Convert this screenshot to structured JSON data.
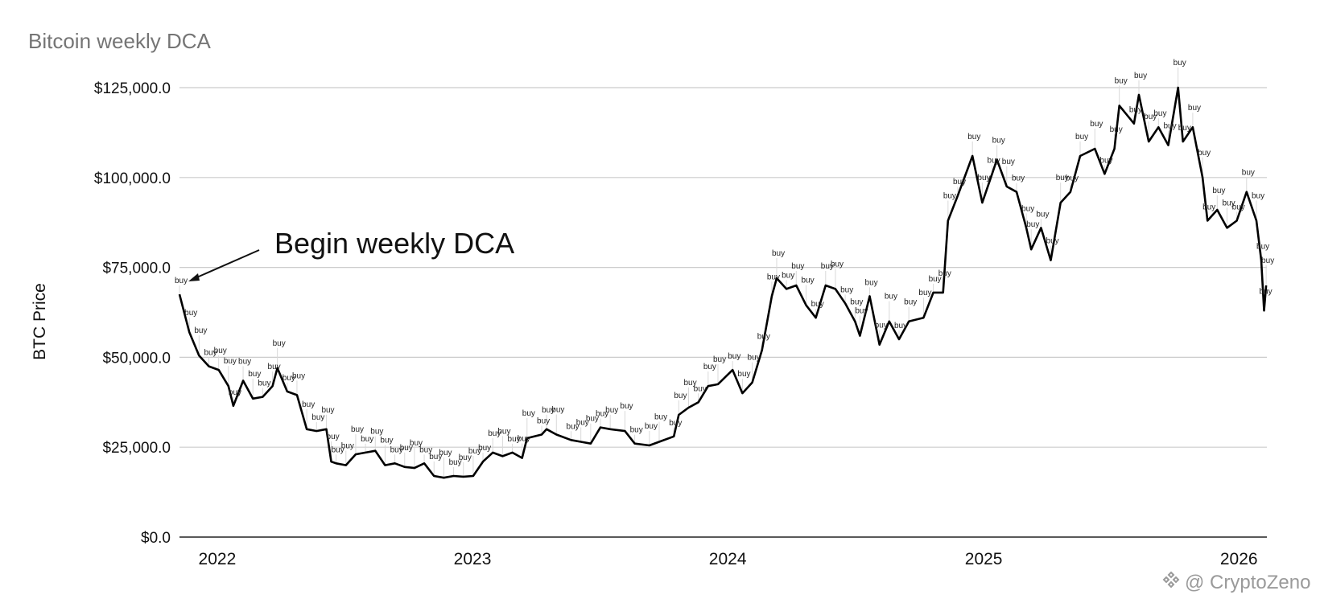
{
  "chart_data": {
    "type": "line",
    "title": "Bitcoin weekly DCA",
    "xlabel": "",
    "ylabel": "BTC Price",
    "ylim": [
      0,
      125000
    ],
    "yticks": [
      "$0.0",
      "$25,000.0",
      "$50,000.0",
      "$75,000.0",
      "$100,000.0",
      "$125,000.0"
    ],
    "xticks": [
      "2022",
      "2023",
      "2024",
      "2025",
      "2026"
    ],
    "grid": true,
    "legend": "none",
    "annotation": {
      "text": "Begin weekly DCA",
      "x": "2021-11-08",
      "y": 68000
    },
    "marker_label": "buy",
    "series": [
      {
        "values": [
          [
            "2021-11-08",
            67500
          ],
          [
            "2021-11-22",
            57000
          ],
          [
            "2021-12-06",
            50500
          ],
          [
            "2021-12-20",
            47500
          ],
          [
            "2022-01-03",
            46500
          ],
          [
            "2022-01-17",
            42000
          ],
          [
            "2022-01-24",
            36500
          ],
          [
            "2022-02-07",
            43500
          ],
          [
            "2022-02-21",
            38500
          ],
          [
            "2022-03-07",
            39000
          ],
          [
            "2022-03-21",
            42000
          ],
          [
            "2022-03-28",
            47000
          ],
          [
            "2022-04-11",
            40500
          ],
          [
            "2022-04-25",
            39500
          ],
          [
            "2022-05-09",
            30000
          ],
          [
            "2022-05-23",
            29500
          ],
          [
            "2022-06-06",
            30000
          ],
          [
            "2022-06-13",
            21000
          ],
          [
            "2022-06-20",
            20500
          ],
          [
            "2022-07-04",
            20000
          ],
          [
            "2022-07-18",
            23000
          ],
          [
            "2022-08-01",
            23500
          ],
          [
            "2022-08-15",
            24000
          ],
          [
            "2022-08-29",
            20000
          ],
          [
            "2022-09-12",
            20500
          ],
          [
            "2022-09-26",
            19500
          ],
          [
            "2022-10-10",
            19200
          ],
          [
            "2022-10-24",
            20500
          ],
          [
            "2022-11-07",
            17000
          ],
          [
            "2022-11-21",
            16500
          ],
          [
            "2022-12-05",
            17000
          ],
          [
            "2022-12-19",
            16800
          ],
          [
            "2023-01-02",
            17000
          ],
          [
            "2023-01-16",
            21000
          ],
          [
            "2023-01-30",
            23500
          ],
          [
            "2023-02-13",
            22500
          ],
          [
            "2023-02-27",
            23500
          ],
          [
            "2023-03-13",
            22000
          ],
          [
            "2023-03-20",
            27500
          ],
          [
            "2023-04-10",
            28500
          ],
          [
            "2023-04-17",
            30000
          ],
          [
            "2023-05-01",
            28500
          ],
          [
            "2023-05-22",
            27000
          ],
          [
            "2023-06-05",
            26500
          ],
          [
            "2023-06-19",
            26000
          ],
          [
            "2023-07-03",
            30500
          ],
          [
            "2023-07-17",
            30000
          ],
          [
            "2023-08-07",
            29500
          ],
          [
            "2023-08-21",
            26000
          ],
          [
            "2023-09-11",
            25500
          ],
          [
            "2023-09-25",
            26500
          ],
          [
            "2023-10-16",
            28000
          ],
          [
            "2023-10-23",
            34000
          ],
          [
            "2023-11-06",
            36000
          ],
          [
            "2023-11-20",
            37500
          ],
          [
            "2023-12-04",
            42000
          ],
          [
            "2023-12-18",
            42500
          ],
          [
            "2024-01-08",
            46500
          ],
          [
            "2024-01-22",
            40000
          ],
          [
            "2024-02-05",
            43000
          ],
          [
            "2024-02-19",
            52000
          ],
          [
            "2024-03-04",
            67000
          ],
          [
            "2024-03-11",
            72000
          ],
          [
            "2024-03-25",
            69000
          ],
          [
            "2024-04-08",
            70000
          ],
          [
            "2024-04-22",
            64500
          ],
          [
            "2024-05-06",
            61000
          ],
          [
            "2024-05-20",
            70000
          ],
          [
            "2024-06-03",
            69000
          ],
          [
            "2024-06-17",
            65000
          ],
          [
            "2024-07-01",
            60000
          ],
          [
            "2024-07-08",
            56000
          ],
          [
            "2024-07-22",
            67000
          ],
          [
            "2024-08-05",
            53500
          ],
          [
            "2024-08-19",
            60000
          ],
          [
            "2024-09-02",
            55000
          ],
          [
            "2024-09-16",
            60000
          ],
          [
            "2024-10-07",
            61000
          ],
          [
            "2024-10-21",
            68000
          ],
          [
            "2024-11-04",
            68000
          ],
          [
            "2024-11-11",
            88000
          ],
          [
            "2024-11-25",
            95000
          ],
          [
            "2024-12-16",
            106000
          ],
          [
            "2024-12-30",
            93000
          ],
          [
            "2025-01-13",
            101000
          ],
          [
            "2025-01-20",
            105000
          ],
          [
            "2025-02-03",
            97500
          ],
          [
            "2025-02-17",
            96000
          ],
          [
            "2025-03-03",
            86000
          ],
          [
            "2025-03-10",
            80000
          ],
          [
            "2025-03-24",
            86000
          ],
          [
            "2025-04-07",
            77000
          ],
          [
            "2025-04-21",
            93000
          ],
          [
            "2025-05-05",
            96000
          ],
          [
            "2025-05-19",
            106000
          ],
          [
            "2025-06-09",
            108000
          ],
          [
            "2025-06-23",
            101000
          ],
          [
            "2025-07-07",
            108000
          ],
          [
            "2025-07-14",
            120000
          ],
          [
            "2025-08-04",
            115000
          ],
          [
            "2025-08-11",
            123000
          ],
          [
            "2025-08-25",
            110000
          ],
          [
            "2025-09-08",
            114000
          ],
          [
            "2025-09-22",
            109000
          ],
          [
            "2025-10-06",
            125000
          ],
          [
            "2025-10-13",
            110000
          ],
          [
            "2025-10-27",
            114000
          ],
          [
            "2025-11-10",
            100000
          ],
          [
            "2025-11-17",
            88000
          ],
          [
            "2025-12-01",
            91000
          ],
          [
            "2025-12-15",
            86000
          ],
          [
            "2025-12-29",
            88000
          ],
          [
            "2026-01-12",
            96000
          ],
          [
            "2026-01-26",
            88000
          ],
          [
            "2026-02-02",
            77000
          ],
          [
            "2026-02-06",
            63000
          ],
          [
            "2026-02-09",
            70000
          ]
        ]
      }
    ]
  },
  "watermark": {
    "text": "@ CryptoZeno",
    "icon": "binance-diamond-icon"
  }
}
